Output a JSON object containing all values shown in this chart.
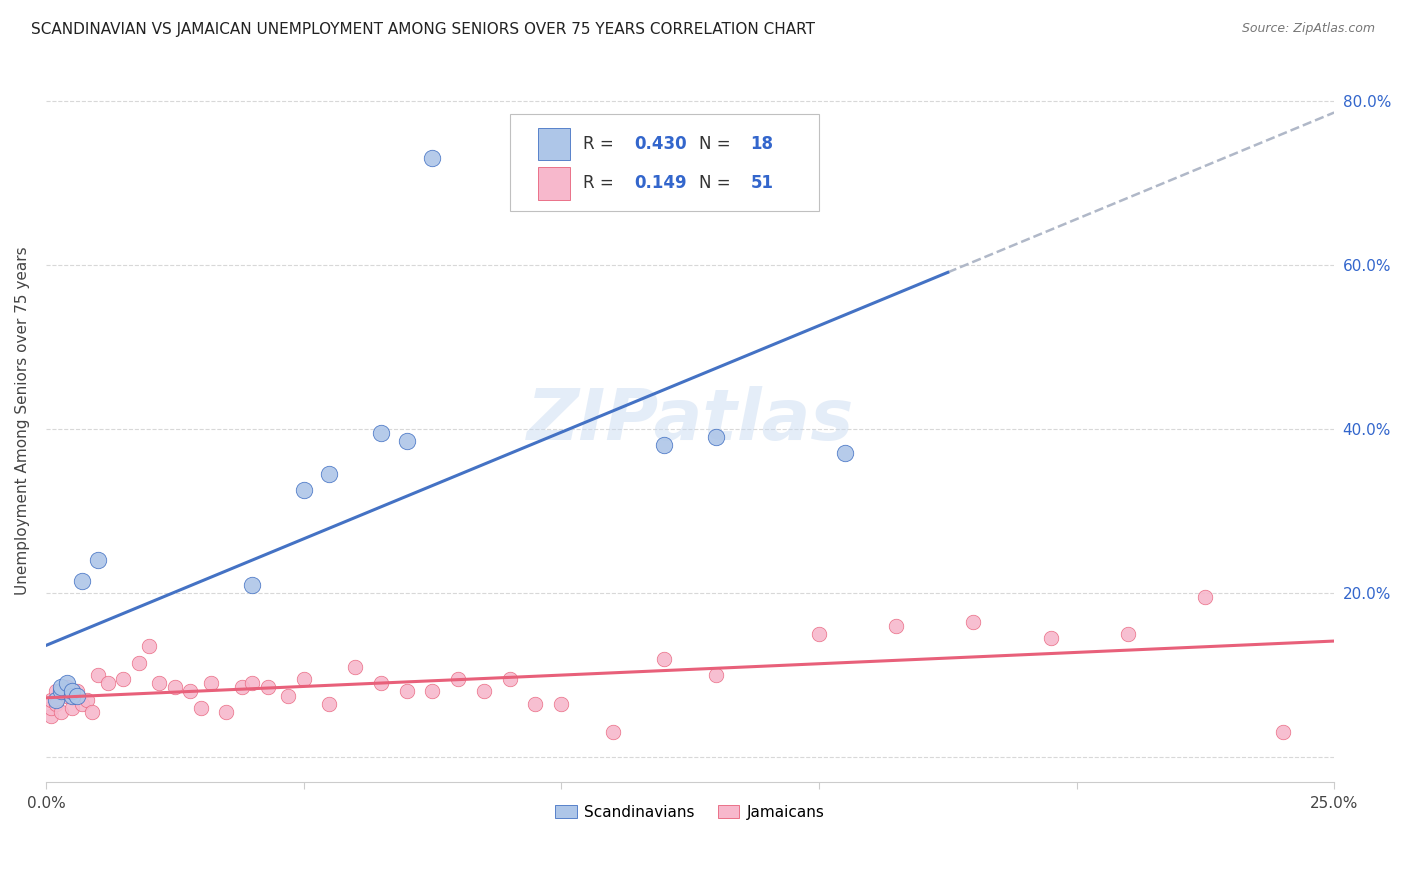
{
  "title": "SCANDINAVIAN VS JAMAICAN UNEMPLOYMENT AMONG SENIORS OVER 75 YEARS CORRELATION CHART",
  "source": "Source: ZipAtlas.com",
  "ylabel": "Unemployment Among Seniors over 75 years",
  "scandinavians": {
    "R": 0.43,
    "N": 18,
    "color": "#aec6e8",
    "line_color": "#4472c4",
    "x": [
      0.002,
      0.003,
      0.003,
      0.004,
      0.005,
      0.005,
      0.006,
      0.007,
      0.01,
      0.04,
      0.05,
      0.055,
      0.065,
      0.07,
      0.075,
      0.12,
      0.13,
      0.155
    ],
    "y": [
      0.07,
      0.08,
      0.085,
      0.09,
      0.075,
      0.08,
      0.075,
      0.215,
      0.24,
      0.21,
      0.325,
      0.345,
      0.395,
      0.385,
      0.73,
      0.38,
      0.39,
      0.37
    ]
  },
  "jamaicans": {
    "R": 0.149,
    "N": 51,
    "color": "#f7b8cc",
    "line_color": "#e8607a",
    "x": [
      0.001,
      0.001,
      0.001,
      0.002,
      0.002,
      0.003,
      0.003,
      0.004,
      0.004,
      0.005,
      0.005,
      0.006,
      0.007,
      0.008,
      0.009,
      0.01,
      0.012,
      0.015,
      0.018,
      0.02,
      0.022,
      0.025,
      0.028,
      0.03,
      0.032,
      0.035,
      0.038,
      0.04,
      0.043,
      0.047,
      0.05,
      0.055,
      0.06,
      0.065,
      0.07,
      0.075,
      0.08,
      0.085,
      0.09,
      0.095,
      0.1,
      0.11,
      0.12,
      0.13,
      0.15,
      0.165,
      0.18,
      0.195,
      0.21,
      0.225,
      0.24
    ],
    "y": [
      0.05,
      0.06,
      0.07,
      0.065,
      0.08,
      0.055,
      0.08,
      0.075,
      0.085,
      0.06,
      0.075,
      0.08,
      0.065,
      0.07,
      0.055,
      0.1,
      0.09,
      0.095,
      0.115,
      0.135,
      0.09,
      0.085,
      0.08,
      0.06,
      0.09,
      0.055,
      0.085,
      0.09,
      0.085,
      0.075,
      0.095,
      0.065,
      0.11,
      0.09,
      0.08,
      0.08,
      0.095,
      0.08,
      0.095,
      0.065,
      0.065,
      0.03,
      0.12,
      0.1,
      0.15,
      0.16,
      0.165,
      0.145,
      0.15,
      0.195,
      0.03
    ]
  },
  "watermark": "ZIPatlas",
  "background_color": "#ffffff",
  "grid_color": "#d8d8d8",
  "xlim": [
    0.0,
    0.25
  ],
  "ylim": [
    -0.03,
    0.85
  ],
  "x_tick_positions": [
    0.0,
    0.05,
    0.1,
    0.15,
    0.2,
    0.25
  ],
  "y_tick_positions": [
    0.0,
    0.2,
    0.4,
    0.6,
    0.8
  ],
  "y_tick_labels": [
    "",
    "20.0%",
    "40.0%",
    "60.0%",
    "80.0%"
  ]
}
